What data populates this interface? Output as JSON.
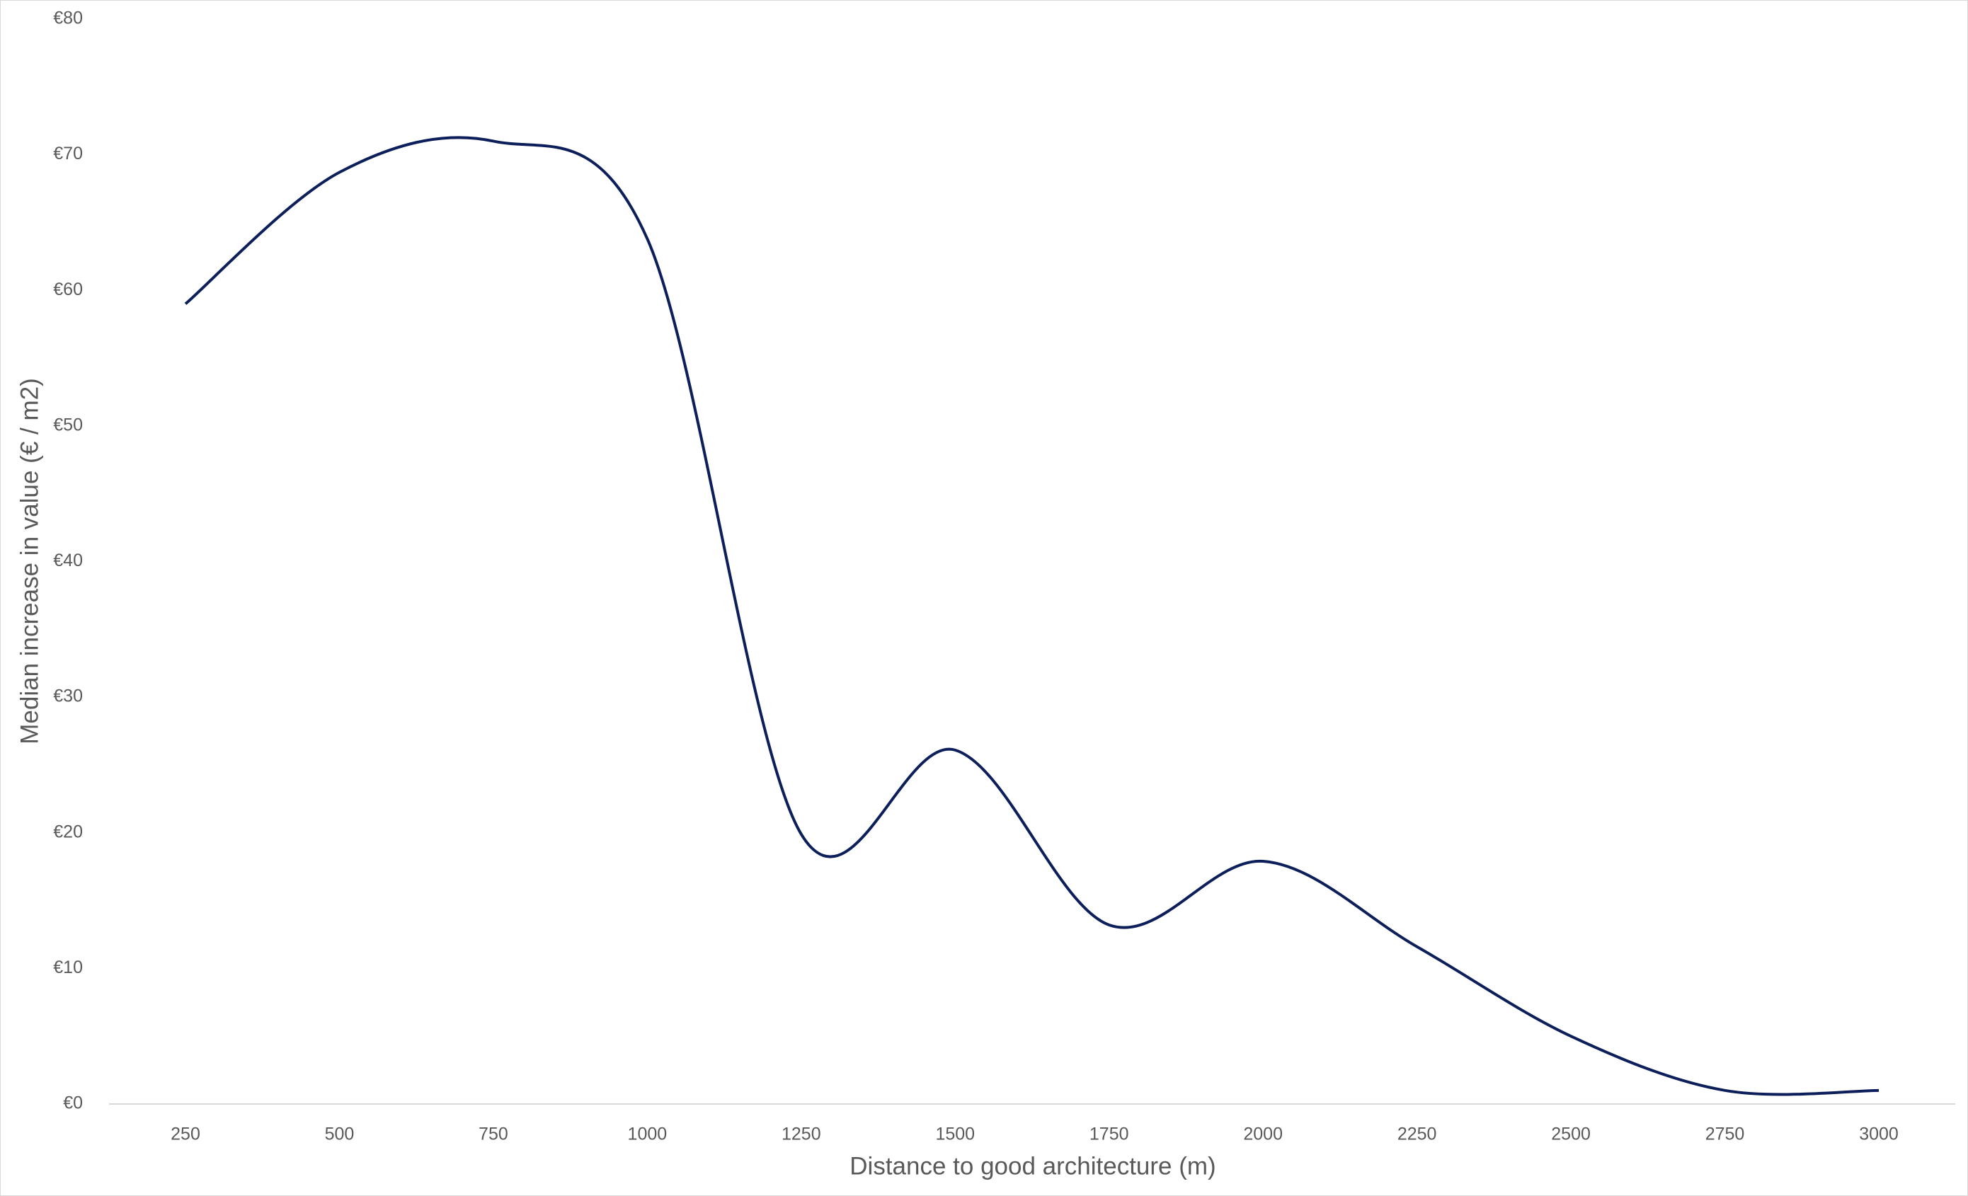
{
  "chart_data": {
    "type": "line",
    "x_label": "Distance to good architecture (m)",
    "y_label": "Median increase in value (€ / m2)",
    "categories": [
      "250",
      "500",
      "750",
      "1000",
      "1250",
      "1500",
      "1750",
      "2000",
      "2250",
      "2500",
      "2750",
      "3000"
    ],
    "values": [
      59,
      68.7,
      71,
      63.8,
      19.9,
      26.1,
      13.2,
      17.9,
      11.6,
      5,
      1,
      1
    ],
    "color": "#0c1f5a",
    "smooth": true,
    "ylim": [
      0,
      80
    ],
    "yticks": [
      {
        "value": 0,
        "label": "€0"
      },
      {
        "value": 10,
        "label": "€10"
      },
      {
        "value": 20,
        "label": "€20"
      },
      {
        "value": 30,
        "label": "€30"
      },
      {
        "value": 40,
        "label": "€40"
      },
      {
        "value": 50,
        "label": "€50"
      },
      {
        "value": 60,
        "label": "€60"
      },
      {
        "value": 70,
        "label": "€70"
      },
      {
        "value": 80,
        "label": "€80"
      }
    ],
    "grid": false
  }
}
